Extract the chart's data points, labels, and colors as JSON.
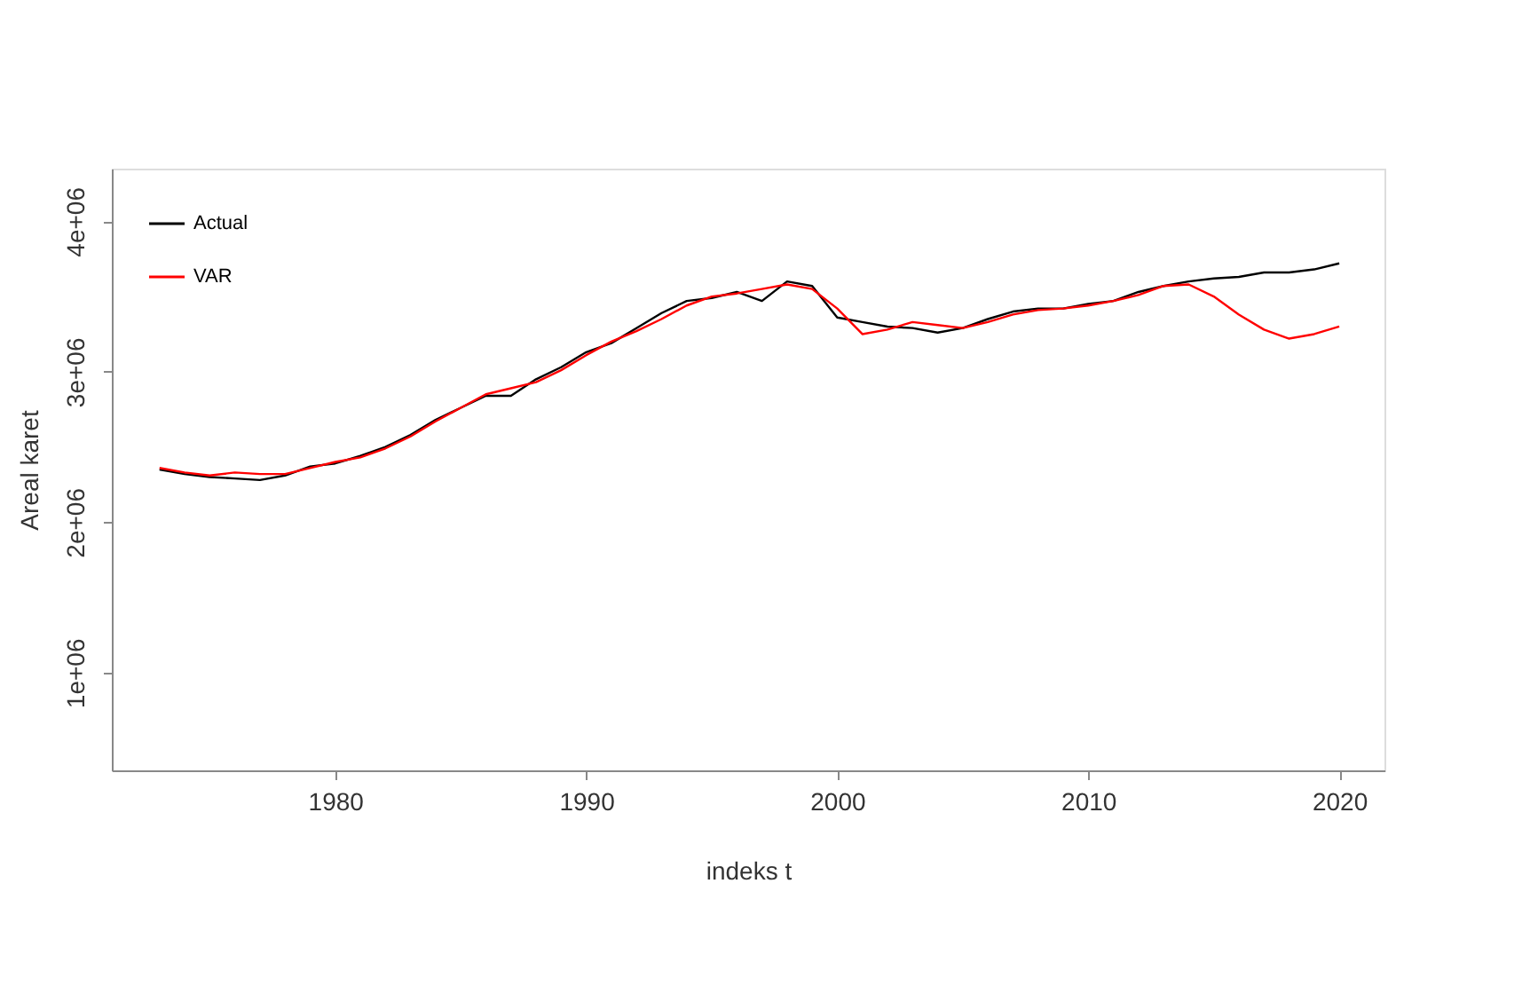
{
  "chart_data": {
    "type": "line",
    "xlabel": "indeks t",
    "ylabel": "Areal karet",
    "x": [
      1973,
      1974,
      1975,
      1976,
      1977,
      1978,
      1979,
      1980,
      1981,
      1982,
      1983,
      1984,
      1985,
      1986,
      1987,
      1988,
      1989,
      1990,
      1991,
      1992,
      1993,
      1994,
      1995,
      1996,
      1997,
      1998,
      1999,
      2000,
      2001,
      2002,
      2003,
      2004,
      2005,
      2006,
      2007,
      2008,
      2009,
      2010,
      2011,
      2012,
      2013,
      2014,
      2015,
      2016,
      2017,
      2018,
      2019,
      2020
    ],
    "series": [
      {
        "name": "Actual",
        "color": "#000000",
        "values": [
          2350000,
          2320000,
          2300000,
          2290000,
          2280000,
          2310000,
          2370000,
          2390000,
          2440000,
          2500000,
          2580000,
          2680000,
          2760000,
          2840000,
          2840000,
          2950000,
          3030000,
          3130000,
          3190000,
          3290000,
          3390000,
          3470000,
          3490000,
          3530000,
          3470000,
          3600000,
          3570000,
          3360000,
          3330000,
          3300000,
          3290000,
          3260000,
          3290000,
          3350000,
          3400000,
          3420000,
          3420000,
          3450000,
          3470000,
          3530000,
          3570000,
          3600000,
          3620000,
          3630000,
          3660000,
          3660000,
          3680000,
          3720000
        ]
      },
      {
        "name": "VAR",
        "color": "#ff0000",
        "values": [
          2360000,
          2330000,
          2310000,
          2330000,
          2320000,
          2320000,
          2360000,
          2400000,
          2430000,
          2490000,
          2570000,
          2670000,
          2760000,
          2850000,
          2890000,
          2930000,
          3010000,
          3110000,
          3200000,
          3270000,
          3350000,
          3440000,
          3500000,
          3520000,
          3550000,
          3580000,
          3550000,
          3420000,
          3250000,
          3280000,
          3330000,
          3310000,
          3290000,
          3330000,
          3380000,
          3410000,
          3420000,
          3440000,
          3470000,
          3510000,
          3570000,
          3580000,
          3500000,
          3380000,
          3280000,
          3220000,
          3250000,
          3300000
        ]
      }
    ],
    "xlim": [
      1971.1,
      2021.8
    ],
    "xticks": [
      1980,
      1990,
      2000,
      2010,
      2020
    ],
    "ylim": [
      350000,
      4350000
    ],
    "yticks": [
      {
        "value": 1000000,
        "label": "1e+06"
      },
      {
        "value": 2000000,
        "label": "2e+06"
      },
      {
        "value": 3000000,
        "label": "3e+06"
      },
      {
        "value": 4000000,
        "label": "4e+06"
      }
    ],
    "grid": false,
    "legend": "top left",
    "marker": "none",
    "line_style": "solid"
  }
}
